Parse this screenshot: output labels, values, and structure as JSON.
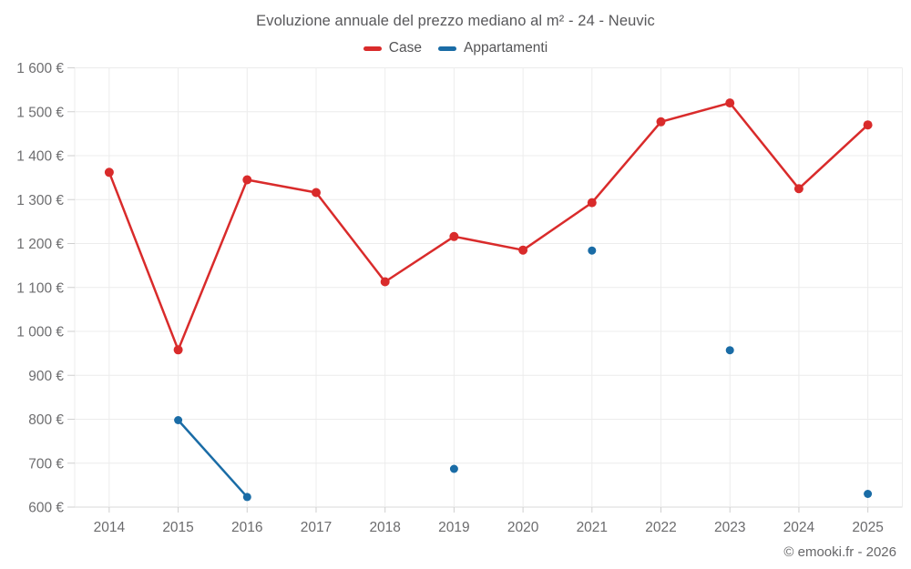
{
  "header": {
    "title": "Evoluzione annuale del prezzo mediano al m² - 24 - Neuvic"
  },
  "legend": {
    "items": [
      {
        "label": "Case",
        "color": "#d92b2b"
      },
      {
        "label": "Appartamenti",
        "color": "#1a6ca6"
      }
    ]
  },
  "footer": {
    "credit": "© emooki.fr - 2026"
  },
  "chart_data": {
    "type": "line",
    "title": "Evoluzione annuale del prezzo mediano al m² - 24 - Neuvic",
    "categories": [
      "2014",
      "2015",
      "2016",
      "2017",
      "2018",
      "2019",
      "2020",
      "2021",
      "2022",
      "2023",
      "2024",
      "2025"
    ],
    "series": [
      {
        "name": "Case",
        "color": "#d92b2b",
        "marker_radius": 5,
        "values": [
          1362,
          958,
          1345,
          1316,
          1113,
          1216,
          1185,
          1293,
          1477,
          1520,
          1325,
          1470
        ]
      },
      {
        "name": "Appartamenti",
        "color": "#1a6ca6",
        "marker_radius": 4.5,
        "values": [
          null,
          798,
          623,
          null,
          null,
          687,
          null,
          1184,
          null,
          957,
          null,
          630
        ]
      }
    ],
    "xlabel": "",
    "ylabel": "",
    "ylim": [
      600,
      1600
    ],
    "ytick_step": 100,
    "ytick_suffix": " €",
    "grid": true,
    "legend_position": "top",
    "annotations": [
      "© emooki.fr - 2026"
    ]
  }
}
